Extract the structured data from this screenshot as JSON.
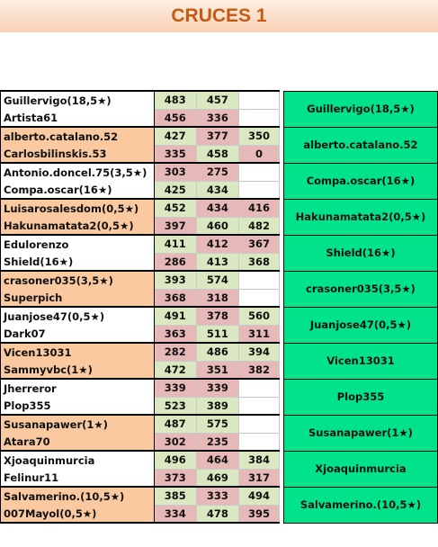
{
  "title": "CRUCES 1",
  "colors": {
    "winner": "#00e38a",
    "orange": "#fac9a0",
    "green": "#d9e8c0",
    "red": "#e6b8b7"
  },
  "matches": [
    {
      "winner": "Guillervigo(18,5★)",
      "bg": "white",
      "players": [
        {
          "name": "Guillervigo(18,5★)",
          "scores": [
            "483",
            "457",
            ""
          ],
          "colors": [
            "green",
            "green",
            "empty"
          ]
        },
        {
          "name": "Artista61",
          "scores": [
            "456",
            "336",
            ""
          ],
          "colors": [
            "red",
            "red",
            "empty"
          ]
        }
      ]
    },
    {
      "winner": "alberto.catalano.52",
      "bg": "orange",
      "players": [
        {
          "name": "alberto.catalano.52",
          "scores": [
            "427",
            "377",
            "350"
          ],
          "colors": [
            "green",
            "red",
            "green"
          ]
        },
        {
          "name": "Carlosbilinskis.53",
          "scores": [
            "335",
            "458",
            "0"
          ],
          "colors": [
            "red",
            "green",
            "red"
          ]
        }
      ]
    },
    {
      "winner": "Compa.oscar(16★)",
      "bg": "white",
      "players": [
        {
          "name": "Antonio.doncel.75(3,5★)",
          "scores": [
            "303",
            "275",
            ""
          ],
          "colors": [
            "red",
            "red",
            "empty"
          ]
        },
        {
          "name": "Compa.oscar(16★)",
          "scores": [
            "425",
            "434",
            ""
          ],
          "colors": [
            "green",
            "green",
            "empty"
          ]
        }
      ]
    },
    {
      "winner": "Hakunamatata2(0,5★)",
      "bg": "orange",
      "players": [
        {
          "name": "Luisarosalesdom(0,5★)",
          "scores": [
            "452",
            "434",
            "416"
          ],
          "colors": [
            "green",
            "red",
            "red"
          ]
        },
        {
          "name": "Hakunamatata2(0,5★)",
          "scores": [
            "397",
            "460",
            "482"
          ],
          "colors": [
            "red",
            "green",
            "green"
          ]
        }
      ]
    },
    {
      "winner": "Shield(16★)",
      "bg": "white",
      "players": [
        {
          "name": "Edulorenzo",
          "scores": [
            "411",
            "412",
            "367"
          ],
          "colors": [
            "green",
            "red",
            "red"
          ]
        },
        {
          "name": "Shield(16★)",
          "scores": [
            "286",
            "413",
            "368"
          ],
          "colors": [
            "red",
            "green",
            "green"
          ]
        }
      ]
    },
    {
      "winner": "crasoner035(3,5★)",
      "bg": "orange",
      "players": [
        {
          "name": "crasoner035(3,5★)",
          "scores": [
            "393",
            "574",
            ""
          ],
          "colors": [
            "green",
            "green",
            "empty"
          ]
        },
        {
          "name": "Superpich",
          "scores": [
            "368",
            "318",
            ""
          ],
          "colors": [
            "red",
            "red",
            "empty"
          ]
        }
      ]
    },
    {
      "winner": "Juanjose47(0,5★)",
      "bg": "white",
      "players": [
        {
          "name": "Juanjose47(0,5★)",
          "scores": [
            "491",
            "378",
            "560"
          ],
          "colors": [
            "green",
            "red",
            "green"
          ]
        },
        {
          "name": "Dark07",
          "scores": [
            "363",
            "511",
            "311"
          ],
          "colors": [
            "red",
            "green",
            "red"
          ]
        }
      ]
    },
    {
      "winner": "Vicen13031",
      "bg": "orange",
      "players": [
        {
          "name": "Vicen13031",
          "scores": [
            "282",
            "486",
            "394"
          ],
          "colors": [
            "red",
            "green",
            "green"
          ]
        },
        {
          "name": "Sammyvbc(1★)",
          "scores": [
            "472",
            "351",
            "382"
          ],
          "colors": [
            "green",
            "red",
            "red"
          ]
        }
      ]
    },
    {
      "winner": "Plop355",
      "bg": "white",
      "players": [
        {
          "name": "Jherreror",
          "scores": [
            "339",
            "339",
            ""
          ],
          "colors": [
            "red",
            "red",
            "empty"
          ]
        },
        {
          "name": "Plop355",
          "scores": [
            "523",
            "389",
            ""
          ],
          "colors": [
            "green",
            "green",
            "empty"
          ]
        }
      ]
    },
    {
      "winner": "Susanapawer(1★)",
      "bg": "orange",
      "players": [
        {
          "name": "Susanapawer(1★)",
          "scores": [
            "487",
            "575",
            ""
          ],
          "colors": [
            "green",
            "green",
            "empty"
          ]
        },
        {
          "name": "Atara70",
          "scores": [
            "302",
            "235",
            ""
          ],
          "colors": [
            "red",
            "red",
            "empty"
          ]
        }
      ]
    },
    {
      "winner": "Xjoaquinmurcia",
      "bg": "white",
      "players": [
        {
          "name": "Xjoaquinmurcia",
          "scores": [
            "496",
            "464",
            "384"
          ],
          "colors": [
            "green",
            "red",
            "green"
          ]
        },
        {
          "name": "Felinur11",
          "scores": [
            "373",
            "469",
            "317"
          ],
          "colors": [
            "red",
            "green",
            "red"
          ]
        }
      ]
    },
    {
      "winner": "Salvamerino.(10,5★)",
      "bg": "orange",
      "players": [
        {
          "name": "Salvamerino.(10,5★)",
          "scores": [
            "385",
            "333",
            "494"
          ],
          "colors": [
            "green",
            "red",
            "green"
          ]
        },
        {
          "name": "007Mayol(0,5★)",
          "scores": [
            "334",
            "478",
            "395"
          ],
          "colors": [
            "red",
            "green",
            "red"
          ]
        }
      ]
    }
  ]
}
